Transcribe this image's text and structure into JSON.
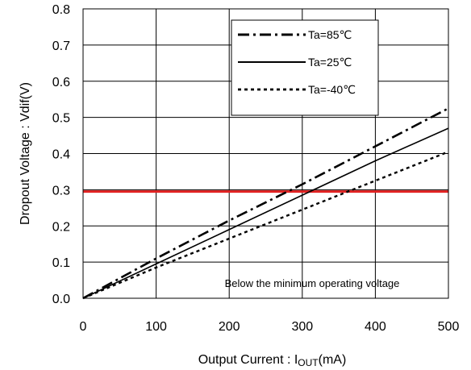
{
  "chart_data": {
    "type": "line",
    "title": "",
    "xlabel_main": "Output Current : I",
    "xlabel_sub": "OUT",
    "xlabel_tail": "(mA)",
    "ylabel": "Dropout Voltage : Vdif(V)",
    "xlim": [
      0,
      500
    ],
    "ylim": [
      0,
      0.8
    ],
    "x_ticks": [
      0,
      100,
      200,
      300,
      400,
      500
    ],
    "y_ticks": [
      0.0,
      0.1,
      0.2,
      0.3,
      0.4,
      0.5,
      0.6,
      0.7,
      0.8
    ],
    "x_tick_labels": [
      "0",
      "100",
      "200",
      "300",
      "400",
      "500"
    ],
    "y_tick_labels": [
      "0.0",
      "0.1",
      "0.2",
      "0.3",
      "0.4",
      "0.5",
      "0.6",
      "0.7",
      "0.8"
    ],
    "grid": true,
    "legend_position": "top-right",
    "series": [
      {
        "name": "Ta=85℃",
        "style": "dashdot",
        "x": [
          0,
          100,
          200,
          300,
          400,
          500
        ],
        "y": [
          0.0,
          0.11,
          0.215,
          0.315,
          0.42,
          0.525
        ]
      },
      {
        "name": "Ta=25℃",
        "style": "solid",
        "x": [
          0,
          100,
          200,
          300,
          400,
          500
        ],
        "y": [
          0.0,
          0.095,
          0.19,
          0.285,
          0.38,
          0.47
        ]
      },
      {
        "name": "Ta=-40℃",
        "style": "dotted",
        "x": [
          0,
          100,
          200,
          300,
          400,
          500
        ],
        "y": [
          0.0,
          0.085,
          0.165,
          0.245,
          0.325,
          0.405
        ]
      }
    ],
    "reference_line": {
      "y": 0.295,
      "color": "#e02020"
    },
    "annotation": "Below the minimum operating voltage"
  }
}
